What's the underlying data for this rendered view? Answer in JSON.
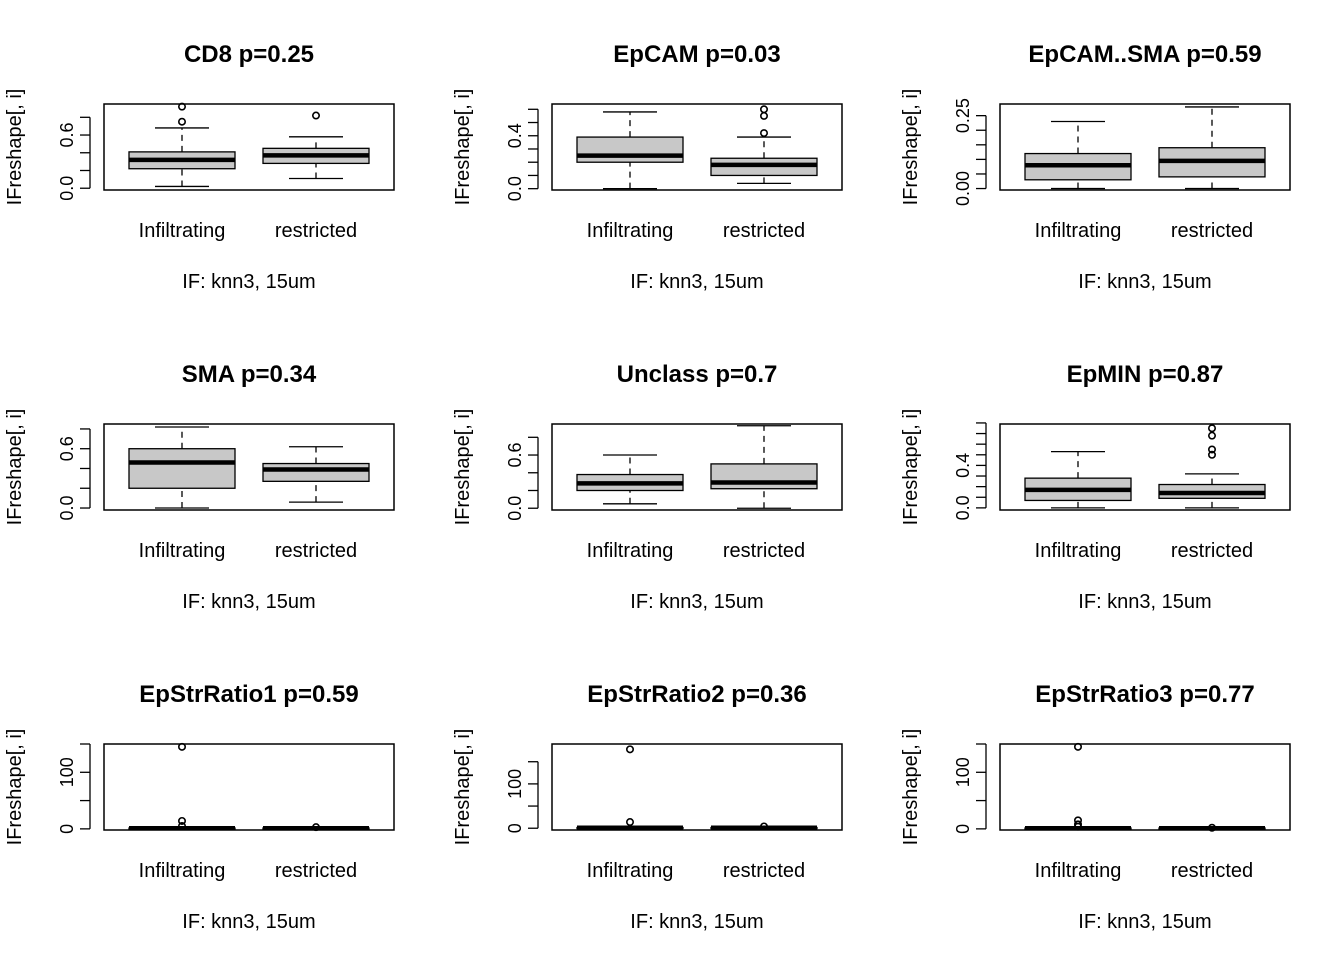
{
  "chart_data": [
    {
      "type": "boxplot",
      "title": "CD8 p=0.25",
      "ylabel": "IFreshape[, i]",
      "xlabel": "IF: knn3, 15um",
      "ylim": [
        -0.02,
        0.95
      ],
      "yticks": [
        0.0,
        0.2,
        0.4,
        0.6,
        0.8
      ],
      "ytick_labels": [
        "0.0",
        "",
        "",
        "0.6",
        ""
      ],
      "categories": [
        "Infiltrating",
        "restricted"
      ],
      "boxes": [
        {
          "whisker_low": 0.02,
          "q1": 0.22,
          "median": 0.32,
          "q3": 0.41,
          "whisker_high": 0.68,
          "outliers": [
            0.75,
            0.92
          ]
        },
        {
          "whisker_low": 0.11,
          "q1": 0.28,
          "median": 0.37,
          "q3": 0.45,
          "whisker_high": 0.58,
          "outliers": [
            0.82
          ]
        }
      ]
    },
    {
      "type": "boxplot",
      "title": "EpCAM p=0.03",
      "ylabel": "IFreshape[, i]",
      "xlabel": "IF: knn3, 15um",
      "ylim": [
        -0.01,
        0.64
      ],
      "yticks": [
        0.0,
        0.1,
        0.2,
        0.3,
        0.4,
        0.5,
        0.6
      ],
      "ytick_labels": [
        "0.0",
        "",
        "",
        "",
        "0.4",
        "",
        ""
      ],
      "categories": [
        "Infiltrating",
        "restricted"
      ],
      "boxes": [
        {
          "whisker_low": 0.0,
          "q1": 0.2,
          "median": 0.25,
          "q3": 0.39,
          "whisker_high": 0.58,
          "outliers": []
        },
        {
          "whisker_low": 0.04,
          "q1": 0.1,
          "median": 0.18,
          "q3": 0.23,
          "whisker_high": 0.39,
          "outliers": [
            0.42,
            0.55,
            0.6
          ]
        }
      ]
    },
    {
      "type": "boxplot",
      "title": "EpCAM..SMA p=0.59",
      "ylabel": "IFreshape[, i]",
      "xlabel": "IF: knn3, 15um",
      "ylim": [
        -0.005,
        0.29
      ],
      "yticks": [
        0.0,
        0.05,
        0.1,
        0.15,
        0.2,
        0.25
      ],
      "ytick_labels": [
        "0.00",
        "",
        "",
        "",
        "",
        "0.25"
      ],
      "categories": [
        "Infiltrating",
        "restricted"
      ],
      "boxes": [
        {
          "whisker_low": 0.0,
          "q1": 0.03,
          "median": 0.08,
          "q3": 0.12,
          "whisker_high": 0.23,
          "outliers": []
        },
        {
          "whisker_low": 0.0,
          "q1": 0.04,
          "median": 0.095,
          "q3": 0.14,
          "whisker_high": 0.28,
          "outliers": []
        }
      ]
    },
    {
      "type": "boxplot",
      "title": "SMA p=0.34",
      "ylabel": "IFreshape[, i]",
      "xlabel": "IF: knn3, 15um",
      "ylim": [
        -0.02,
        0.85
      ],
      "yticks": [
        0.0,
        0.2,
        0.4,
        0.6,
        0.8
      ],
      "ytick_labels": [
        "0.0",
        "",
        "",
        "0.6",
        ""
      ],
      "categories": [
        "Infiltrating",
        "restricted"
      ],
      "boxes": [
        {
          "whisker_low": 0.0,
          "q1": 0.2,
          "median": 0.46,
          "q3": 0.6,
          "whisker_high": 0.82,
          "outliers": []
        },
        {
          "whisker_low": 0.06,
          "q1": 0.27,
          "median": 0.39,
          "q3": 0.45,
          "whisker_high": 0.62,
          "outliers": []
        }
      ]
    },
    {
      "type": "boxplot",
      "title": "Unclass p=0.7",
      "ylabel": "IFreshape[, i]",
      "xlabel": "IF: knn3, 15um",
      "ylim": [
        -0.02,
        0.95
      ],
      "yticks": [
        0.0,
        0.2,
        0.4,
        0.6,
        0.8
      ],
      "ytick_labels": [
        "0.0",
        "",
        "",
        "0.6",
        ""
      ],
      "categories": [
        "Infiltrating",
        "restricted"
      ],
      "boxes": [
        {
          "whisker_low": 0.05,
          "q1": 0.2,
          "median": 0.28,
          "q3": 0.38,
          "whisker_high": 0.6,
          "outliers": []
        },
        {
          "whisker_low": 0.0,
          "q1": 0.22,
          "median": 0.29,
          "q3": 0.5,
          "whisker_high": 0.93,
          "outliers": []
        }
      ]
    },
    {
      "type": "boxplot",
      "title": "EpMIN p=0.87",
      "ylabel": "IFreshape[, i]",
      "xlabel": "IF: knn3, 15um",
      "ylim": [
        -0.02,
        0.79
      ],
      "yticks": [
        0.0,
        0.1,
        0.2,
        0.3,
        0.4,
        0.5,
        0.6,
        0.7,
        0.8
      ],
      "ytick_labels": [
        "0.0",
        "",
        "",
        "",
        "0.4",
        "",
        "",
        "",
        ""
      ],
      "categories": [
        "Infiltrating",
        "restricted"
      ],
      "boxes": [
        {
          "whisker_low": 0.0,
          "q1": 0.07,
          "median": 0.17,
          "q3": 0.28,
          "whisker_high": 0.53,
          "outliers": []
        },
        {
          "whisker_low": 0.0,
          "q1": 0.09,
          "median": 0.14,
          "q3": 0.22,
          "whisker_high": 0.32,
          "outliers": [
            0.5,
            0.55,
            0.68,
            0.75
          ]
        }
      ]
    },
    {
      "type": "boxplot",
      "title": "EpStrRatio1 p=0.59",
      "ylabel": "IFreshape[, i]",
      "xlabel": "IF: knn3, 15um",
      "ylim": [
        -2,
        150
      ],
      "yticks": [
        0,
        50,
        100,
        150
      ],
      "ytick_labels": [
        "0",
        "",
        "100",
        ""
      ],
      "categories": [
        "Infiltrating",
        "restricted"
      ],
      "boxes": [
        {
          "whisker_low": 0,
          "q1": 0.5,
          "median": 1,
          "q3": 1.5,
          "whisker_high": 2.5,
          "outliers": [
            5,
            14,
            145
          ]
        },
        {
          "whisker_low": 0,
          "q1": 0.5,
          "median": 1,
          "q3": 1.5,
          "whisker_high": 2.5,
          "outliers": [
            3
          ]
        }
      ]
    },
    {
      "type": "boxplot",
      "title": "EpStrRatio2 p=0.36",
      "ylabel": "IFreshape[, i]",
      "xlabel": "IF: knn3, 15um",
      "ylim": [
        -4,
        190
      ],
      "yticks": [
        0,
        50,
        100,
        150
      ],
      "ytick_labels": [
        "0",
        "",
        "100",
        ""
      ],
      "categories": [
        "Infiltrating",
        "restricted"
      ],
      "boxes": [
        {
          "whisker_low": 0,
          "q1": 0.5,
          "median": 1,
          "q3": 1.5,
          "whisker_high": 2.5,
          "outliers": [
            14,
            178
          ]
        },
        {
          "whisker_low": 0,
          "q1": 0.5,
          "median": 1,
          "q3": 1.5,
          "whisker_high": 2.5,
          "outliers": [
            4
          ]
        }
      ]
    },
    {
      "type": "boxplot",
      "title": "EpStrRatio3 p=0.77",
      "ylabel": "IFreshape[, i]",
      "xlabel": "IF: knn3, 15um",
      "ylim": [
        -2,
        150
      ],
      "yticks": [
        0,
        50,
        100,
        150
      ],
      "ytick_labels": [
        "0",
        "",
        "100",
        ""
      ],
      "categories": [
        "Infiltrating",
        "restricted"
      ],
      "boxes": [
        {
          "whisker_low": 0,
          "q1": 0.5,
          "median": 1,
          "q3": 1.5,
          "whisker_high": 2.5,
          "outliers": [
            4,
            8,
            15,
            145
          ]
        },
        {
          "whisker_low": 0,
          "q1": 0.5,
          "median": 1,
          "q3": 1.5,
          "whisker_high": 2.5,
          "outliers": [
            2
          ]
        }
      ]
    }
  ]
}
